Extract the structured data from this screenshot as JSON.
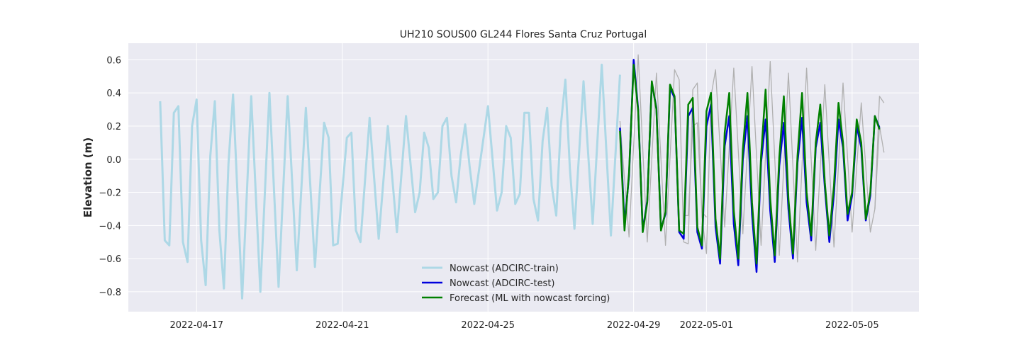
{
  "chart_data": {
    "type": "line",
    "title": "UH210 SOUS00 GL244 Flores Santa Cruz Portugal",
    "xlabel": "",
    "ylabel": "Elevation (m)",
    "x_type": "date",
    "xlim": [
      "2022-04-15T03:00",
      "2022-05-06T20:00"
    ],
    "ylim": [
      -0.92,
      0.7
    ],
    "x_ticks": [
      "2022-04-17",
      "2022-04-21",
      "2022-04-25",
      "2022-04-29",
      "2022-05-01",
      "2022-05-05"
    ],
    "y_ticks": [
      -0.8,
      -0.6,
      -0.4,
      -0.2,
      0.0,
      0.2,
      0.4,
      0.6
    ],
    "grid": true,
    "background": "#eaeaf2",
    "legend_position": "lower center",
    "series": [
      {
        "name": "Nowcast (ADCIRC-train)",
        "color": "#add8e6",
        "stroke_width": 3,
        "in_legend": true,
        "points": [
          [
            "2022-04-16T00:00",
            0.35
          ],
          [
            "2022-04-16T03:00",
            -0.49
          ],
          [
            "2022-04-16T06:00",
            -0.52
          ],
          [
            "2022-04-16T09:00",
            0.28
          ],
          [
            "2022-04-16T12:00",
            0.32
          ],
          [
            "2022-04-16T15:00",
            -0.5
          ],
          [
            "2022-04-16T18:00",
            -0.62
          ],
          [
            "2022-04-16T21:00",
            0.2
          ],
          [
            "2022-04-17T00:00",
            0.36
          ],
          [
            "2022-04-17T03:00",
            -0.49
          ],
          [
            "2022-04-17T06:00",
            -0.76
          ],
          [
            "2022-04-17T09:00",
            0.02
          ],
          [
            "2022-04-17T12:00",
            0.35
          ],
          [
            "2022-04-17T15:00",
            -0.43
          ],
          [
            "2022-04-17T18:00",
            -0.78
          ],
          [
            "2022-04-17T21:00",
            -0.03
          ],
          [
            "2022-04-18T00:00",
            0.39
          ],
          [
            "2022-04-18T06:00",
            -0.84
          ],
          [
            "2022-04-18T12:00",
            0.38
          ],
          [
            "2022-04-18T18:00",
            -0.8
          ],
          [
            "2022-04-19T00:00",
            0.4
          ],
          [
            "2022-04-19T06:00",
            -0.77
          ],
          [
            "2022-04-19T12:00",
            0.38
          ],
          [
            "2022-04-19T18:00",
            -0.67
          ],
          [
            "2022-04-20T00:00",
            0.31
          ],
          [
            "2022-04-20T06:00",
            -0.65
          ],
          [
            "2022-04-20T12:00",
            0.22
          ],
          [
            "2022-04-20T15:00",
            0.13
          ],
          [
            "2022-04-20T18:00",
            -0.52
          ],
          [
            "2022-04-20T21:00",
            -0.51
          ],
          [
            "2022-04-21T03:00",
            0.13
          ],
          [
            "2022-04-21T06:00",
            0.16
          ],
          [
            "2022-04-21T09:00",
            -0.43
          ],
          [
            "2022-04-21T12:00",
            -0.5
          ],
          [
            "2022-04-21T18:00",
            0.25
          ],
          [
            "2022-04-22T00:00",
            -0.48
          ],
          [
            "2022-04-22T06:00",
            0.2
          ],
          [
            "2022-04-22T12:00",
            -0.44
          ],
          [
            "2022-04-22T18:00",
            0.26
          ],
          [
            "2022-04-23T00:00",
            -0.32
          ],
          [
            "2022-04-23T03:00",
            -0.2
          ],
          [
            "2022-04-23T06:00",
            0.16
          ],
          [
            "2022-04-23T09:00",
            0.07
          ],
          [
            "2022-04-23T12:00",
            -0.24
          ],
          [
            "2022-04-23T15:00",
            -0.2
          ],
          [
            "2022-04-23T18:00",
            0.2
          ],
          [
            "2022-04-23T21:00",
            0.25
          ],
          [
            "2022-04-24T00:00",
            -0.1
          ],
          [
            "2022-04-24T03:00",
            -0.26
          ],
          [
            "2022-04-24T06:00",
            0.02
          ],
          [
            "2022-04-24T09:00",
            0.21
          ],
          [
            "2022-04-24T12:00",
            -0.05
          ],
          [
            "2022-04-24T15:00",
            -0.27
          ],
          [
            "2022-04-25T00:00",
            0.32
          ],
          [
            "2022-04-25T06:00",
            -0.31
          ],
          [
            "2022-04-25T09:00",
            -0.2
          ],
          [
            "2022-04-25T12:00",
            0.2
          ],
          [
            "2022-04-25T15:00",
            0.13
          ],
          [
            "2022-04-25T18:00",
            -0.27
          ],
          [
            "2022-04-25T21:00",
            -0.21
          ],
          [
            "2022-04-26T00:00",
            0.28
          ],
          [
            "2022-04-26T03:00",
            0.28
          ],
          [
            "2022-04-26T06:00",
            -0.24
          ],
          [
            "2022-04-26T09:00",
            -0.37
          ],
          [
            "2022-04-26T12:00",
            0.11
          ],
          [
            "2022-04-26T15:00",
            0.31
          ],
          [
            "2022-04-26T18:00",
            -0.16
          ],
          [
            "2022-04-26T21:00",
            -0.34
          ],
          [
            "2022-04-27T00:00",
            0.2
          ],
          [
            "2022-04-27T03:00",
            0.48
          ],
          [
            "2022-04-27T06:00",
            -0.06
          ],
          [
            "2022-04-27T09:00",
            -0.42
          ],
          [
            "2022-04-27T15:00",
            0.47
          ],
          [
            "2022-04-27T21:00",
            -0.39
          ],
          [
            "2022-04-28T03:00",
            0.57
          ],
          [
            "2022-04-28T09:00",
            -0.46
          ],
          [
            "2022-04-28T15:00",
            0.51
          ]
        ]
      },
      {
        "name": "Observed",
        "color": "#b0b0b0",
        "stroke_width": 1.3,
        "in_legend": false,
        "points": [
          [
            "2022-04-28T15:00",
            0.23
          ],
          [
            "2022-04-28T21:00",
            -0.47
          ],
          [
            "2022-04-29T03:00",
            0.63
          ],
          [
            "2022-04-29T09:00",
            -0.5
          ],
          [
            "2022-04-29T15:00",
            0.52
          ],
          [
            "2022-04-29T21:00",
            -0.52
          ],
          [
            "2022-04-30T03:00",
            0.54
          ],
          [
            "2022-04-30T06:00",
            0.48
          ],
          [
            "2022-04-30T09:00",
            -0.5
          ],
          [
            "2022-04-30T12:00",
            -0.51
          ],
          [
            "2022-04-30T15:00",
            0.42
          ],
          [
            "2022-04-30T18:00",
            0.46
          ],
          [
            "2022-04-30T21:00",
            -0.35
          ],
          [
            "2022-05-01T00:00",
            -0.57
          ],
          [
            "2022-05-01T03:00",
            0.38
          ],
          [
            "2022-05-01T06:00",
            0.54
          ],
          [
            "2022-05-01T12:00",
            -0.41
          ],
          [
            "2022-05-01T18:00",
            0.55
          ],
          [
            "2022-05-02T00:00",
            -0.45
          ],
          [
            "2022-05-02T06:00",
            0.56
          ],
          [
            "2022-05-02T12:00",
            -0.52
          ],
          [
            "2022-05-02T18:00",
            0.59
          ],
          [
            "2022-05-03T00:00",
            -0.58
          ],
          [
            "2022-05-03T06:00",
            0.52
          ],
          [
            "2022-05-03T12:00",
            -0.62
          ],
          [
            "2022-05-03T18:00",
            0.55
          ],
          [
            "2022-05-04T00:00",
            -0.55
          ],
          [
            "2022-05-04T06:00",
            0.45
          ],
          [
            "2022-05-04T12:00",
            -0.53
          ],
          [
            "2022-05-04T18:00",
            0.46
          ],
          [
            "2022-05-05T00:00",
            -0.44
          ],
          [
            "2022-05-05T06:00",
            0.34
          ],
          [
            "2022-05-05T12:00",
            -0.44
          ],
          [
            "2022-05-05T15:00",
            -0.3
          ],
          [
            "2022-05-05T18:00",
            0.38
          ],
          [
            "2022-05-05T21:00",
            0.34
          ]
        ]
      },
      {
        "name": "Observed (secondary)",
        "color": "#b0b0b0",
        "stroke_width": 1.3,
        "in_legend": false,
        "points": [
          [
            "2022-04-30T09:00",
            -0.34
          ],
          [
            "2022-04-30T12:00",
            -0.34
          ],
          [
            "2022-04-30T15:00",
            0.2
          ],
          [
            "2022-04-30T18:00",
            0.22
          ],
          [
            "2022-04-30T21:00",
            -0.32
          ],
          [
            "2022-05-01T00:00",
            -0.35
          ]
        ]
      },
      {
        "name": "Observed (tail)",
        "color": "#b0b0b0",
        "stroke_width": 1.3,
        "in_legend": false,
        "points": [
          [
            "2022-05-05T15:00",
            -0.3
          ],
          [
            "2022-05-05T18:00",
            0.2
          ],
          [
            "2022-05-05T21:00",
            0.04
          ]
        ]
      },
      {
        "name": "Nowcast (ADCIRC-test)",
        "color": "#0000dd",
        "stroke_width": 2.5,
        "in_legend": true,
        "points": [
          [
            "2022-04-28T15:00",
            0.19
          ],
          [
            "2022-04-28T18:00",
            -0.39
          ],
          [
            "2022-04-28T21:00",
            -0.1
          ],
          [
            "2022-04-29T00:00",
            0.6
          ],
          [
            "2022-04-29T03:00",
            0.3
          ],
          [
            "2022-04-29T06:00",
            -0.43
          ],
          [
            "2022-04-29T09:00",
            -0.25
          ],
          [
            "2022-04-29T12:00",
            0.46
          ],
          [
            "2022-04-29T15:00",
            0.31
          ],
          [
            "2022-04-29T18:00",
            -0.42
          ],
          [
            "2022-04-29T21:00",
            -0.33
          ],
          [
            "2022-04-30T00:00",
            0.43
          ],
          [
            "2022-04-30T03:00",
            0.37
          ],
          [
            "2022-04-30T06:00",
            -0.44
          ],
          [
            "2022-04-30T09:00",
            -0.48
          ],
          [
            "2022-04-30T12:00",
            0.26
          ],
          [
            "2022-04-30T15:00",
            0.31
          ],
          [
            "2022-04-30T18:00",
            -0.44
          ],
          [
            "2022-04-30T21:00",
            -0.54
          ],
          [
            "2022-05-01T00:00",
            0.2
          ],
          [
            "2022-05-01T03:00",
            0.33
          ],
          [
            "2022-05-01T06:00",
            -0.41
          ],
          [
            "2022-05-01T09:00",
            -0.63
          ],
          [
            "2022-05-01T12:00",
            0.08
          ],
          [
            "2022-05-01T15:00",
            0.26
          ],
          [
            "2022-05-01T18:00",
            -0.39
          ],
          [
            "2022-05-01T21:00",
            -0.64
          ],
          [
            "2022-05-02T00:00",
            0.0
          ],
          [
            "2022-05-02T03:00",
            0.26
          ],
          [
            "2022-05-02T06:00",
            -0.33
          ],
          [
            "2022-05-02T09:00",
            -0.68
          ],
          [
            "2022-05-02T12:00",
            -0.02
          ],
          [
            "2022-05-02T15:00",
            0.24
          ],
          [
            "2022-05-02T18:00",
            -0.31
          ],
          [
            "2022-05-02T21:00",
            -0.62
          ],
          [
            "2022-05-03T00:00",
            -0.04
          ],
          [
            "2022-05-03T03:00",
            0.22
          ],
          [
            "2022-05-03T06:00",
            -0.3
          ],
          [
            "2022-05-03T09:00",
            -0.6
          ],
          [
            "2022-05-03T12:00",
            -0.02
          ],
          [
            "2022-05-03T15:00",
            0.25
          ],
          [
            "2022-05-03T18:00",
            -0.26
          ],
          [
            "2022-05-03T21:00",
            -0.49
          ],
          [
            "2022-05-04T00:00",
            0.07
          ],
          [
            "2022-05-04T03:00",
            0.22
          ],
          [
            "2022-05-04T06:00",
            -0.17
          ],
          [
            "2022-05-04T09:00",
            -0.5
          ],
          [
            "2022-05-04T12:00",
            -0.21
          ],
          [
            "2022-05-04T15:00",
            0.24
          ],
          [
            "2022-05-04T18:00",
            0.07
          ],
          [
            "2022-05-04T21:00",
            -0.37
          ],
          [
            "2022-05-05T00:00",
            -0.22
          ],
          [
            "2022-05-05T03:00",
            0.2
          ],
          [
            "2022-05-05T06:00",
            0.07
          ],
          [
            "2022-05-05T09:00",
            -0.37
          ],
          [
            "2022-05-05T12:00",
            -0.22
          ],
          [
            "2022-05-05T15:00",
            0.26
          ],
          [
            "2022-05-05T18:00",
            0.19
          ]
        ]
      },
      {
        "name": "Forecast (ML with nowcast forcing)",
        "color": "#008000",
        "stroke_width": 2.5,
        "in_legend": true,
        "points": [
          [
            "2022-04-28T15:00",
            0.17
          ],
          [
            "2022-04-28T18:00",
            -0.43
          ],
          [
            "2022-04-28T21:00",
            -0.08
          ],
          [
            "2022-04-29T00:00",
            0.57
          ],
          [
            "2022-04-29T03:00",
            0.29
          ],
          [
            "2022-04-29T06:00",
            -0.44
          ],
          [
            "2022-04-29T09:00",
            -0.26
          ],
          [
            "2022-04-29T12:00",
            0.47
          ],
          [
            "2022-04-29T15:00",
            0.3
          ],
          [
            "2022-04-29T18:00",
            -0.43
          ],
          [
            "2022-04-29T21:00",
            -0.32
          ],
          [
            "2022-04-30T00:00",
            0.45
          ],
          [
            "2022-04-30T03:00",
            0.38
          ],
          [
            "2022-04-30T06:00",
            -0.43
          ],
          [
            "2022-04-30T09:00",
            -0.45
          ],
          [
            "2022-04-30T12:00",
            0.33
          ],
          [
            "2022-04-30T15:00",
            0.37
          ],
          [
            "2022-04-30T18:00",
            -0.41
          ],
          [
            "2022-04-30T21:00",
            -0.52
          ],
          [
            "2022-05-01T00:00",
            0.29
          ],
          [
            "2022-05-01T03:00",
            0.4
          ],
          [
            "2022-05-01T06:00",
            -0.36
          ],
          [
            "2022-05-01T09:00",
            -0.6
          ],
          [
            "2022-05-01T12:00",
            0.16
          ],
          [
            "2022-05-01T15:00",
            0.4
          ],
          [
            "2022-05-01T18:00",
            -0.31
          ],
          [
            "2022-05-01T21:00",
            -0.6
          ],
          [
            "2022-05-02T00:00",
            0.06
          ],
          [
            "2022-05-02T03:00",
            0.4
          ],
          [
            "2022-05-02T06:00",
            -0.26
          ],
          [
            "2022-05-02T09:00",
            -0.63
          ],
          [
            "2022-05-02T12:00",
            0.02
          ],
          [
            "2022-05-02T15:00",
            0.42
          ],
          [
            "2022-05-02T18:00",
            -0.24
          ],
          [
            "2022-05-02T21:00",
            -0.58
          ],
          [
            "2022-05-03T00:00",
            0.01
          ],
          [
            "2022-05-03T03:00",
            0.38
          ],
          [
            "2022-05-03T06:00",
            -0.24
          ],
          [
            "2022-05-03T09:00",
            -0.57
          ],
          [
            "2022-05-03T12:00",
            0.02
          ],
          [
            "2022-05-03T15:00",
            0.4
          ],
          [
            "2022-05-03T18:00",
            -0.2
          ],
          [
            "2022-05-03T21:00",
            -0.46
          ],
          [
            "2022-05-04T00:00",
            0.1
          ],
          [
            "2022-05-04T03:00",
            0.33
          ],
          [
            "2022-05-04T06:00",
            -0.14
          ],
          [
            "2022-05-04T09:00",
            -0.46
          ],
          [
            "2022-05-04T12:00",
            -0.16
          ],
          [
            "2022-05-04T15:00",
            0.34
          ],
          [
            "2022-05-04T18:00",
            0.1
          ],
          [
            "2022-05-04T21:00",
            -0.33
          ],
          [
            "2022-05-05T00:00",
            -0.2
          ],
          [
            "2022-05-05T03:00",
            0.24
          ],
          [
            "2022-05-05T06:00",
            0.1
          ],
          [
            "2022-05-05T09:00",
            -0.36
          ],
          [
            "2022-05-05T12:00",
            -0.2
          ],
          [
            "2022-05-05T15:00",
            0.26
          ],
          [
            "2022-05-05T18:00",
            0.18
          ]
        ]
      }
    ]
  }
}
